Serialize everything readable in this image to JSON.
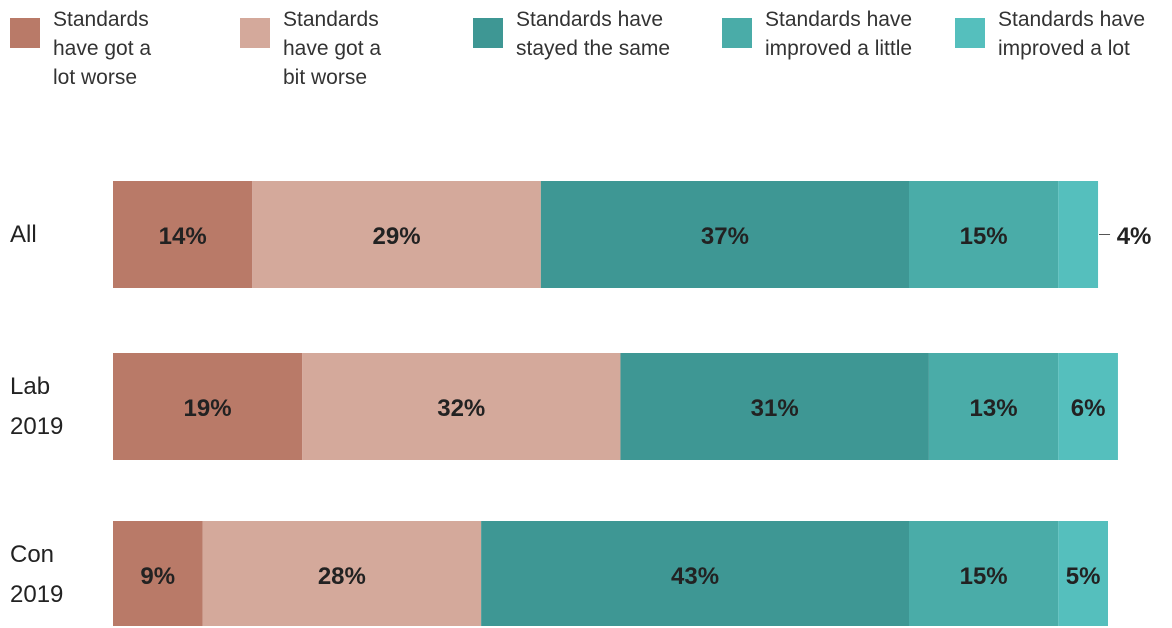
{
  "chart_data": {
    "type": "stacked-bar-horizontal",
    "categories": [
      "All",
      "Lab 2019",
      "Con 2019"
    ],
    "xlim": [
      0,
      100
    ],
    "legend": "top",
    "series": [
      {
        "name": "Standards have got a lot worse",
        "color": "#b97a68",
        "values": [
          14,
          19,
          9
        ],
        "value_labels": [
          "14%",
          "19%",
          "9%"
        ]
      },
      {
        "name": "Standards have got a bit worse",
        "color": "#d4a99b",
        "values": [
          29,
          32,
          28
        ],
        "value_labels": [
          "29%",
          "32%",
          "28%"
        ]
      },
      {
        "name": "Standards have stayed the same",
        "color": "#3e9794",
        "values": [
          37,
          31,
          43
        ],
        "value_labels": [
          "37%",
          "31%",
          "43%"
        ]
      },
      {
        "name": "Standards have improved a little",
        "color": "#4aaca8",
        "values": [
          15,
          13,
          15
        ],
        "value_labels": [
          "15%",
          "13%",
          "15%"
        ]
      },
      {
        "name": "Standards have improved a lot",
        "color": "#55bfbd",
        "values": [
          4,
          6,
          5
        ],
        "value_labels": [
          "4%",
          "6%",
          "5%"
        ]
      }
    ]
  }
}
